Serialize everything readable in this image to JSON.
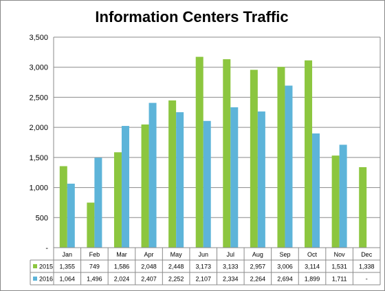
{
  "chart_data": {
    "type": "bar",
    "title": "Information Centers Traffic",
    "categories": [
      "Jan",
      "Feb",
      "Mar",
      "Apr",
      "May",
      "Jun",
      "Jul",
      "Aug",
      "Sep",
      "Oct",
      "Nov",
      "Dec"
    ],
    "series": [
      {
        "name": "2015",
        "color": "#8CC63F",
        "values": [
          1355,
          749,
          1586,
          2048,
          2448,
          3173,
          3133,
          2957,
          3006,
          3114,
          1531,
          1338
        ],
        "labels": [
          "1,355",
          "749",
          "1,586",
          "2,048",
          "2,448",
          "3,173",
          "3,133",
          "2,957",
          "3,006",
          "3,114",
          "1,531",
          "1,338"
        ]
      },
      {
        "name": "2016",
        "color": "#5DB4D9",
        "values": [
          1064,
          1496,
          2024,
          2407,
          2252,
          2107,
          2334,
          2264,
          2694,
          1899,
          1711,
          null
        ],
        "labels": [
          "1,064",
          "1,496",
          "2,024",
          "2,407",
          "2,252",
          "2,107",
          "2,334",
          "2,264",
          "2,694",
          "1,899",
          "1,711",
          "-"
        ]
      }
    ],
    "y_ticks": [
      "-",
      "500",
      "1,000",
      "1,500",
      "2,000",
      "2,500",
      "3,000",
      "3,500"
    ],
    "y_tick_values": [
      0,
      500,
      1000,
      1500,
      2000,
      2500,
      3000,
      3500
    ],
    "ylim": [
      0,
      3500
    ],
    "grid": true,
    "legend": "data-table"
  }
}
